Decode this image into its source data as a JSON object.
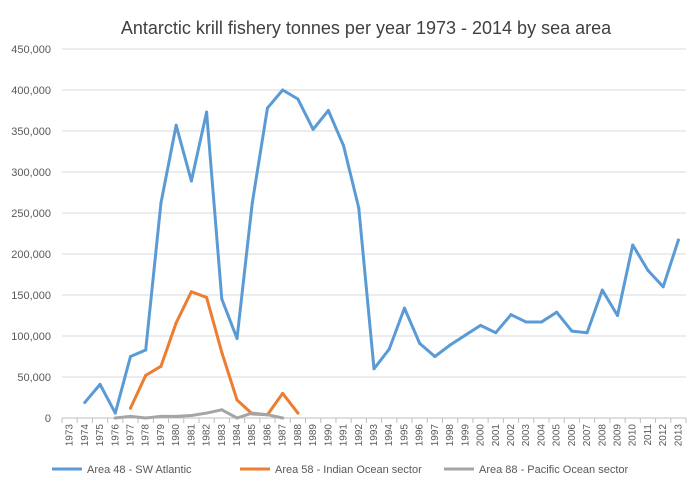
{
  "chart_data": {
    "type": "line",
    "title": "Antarctic krill fishery tonnes per year 1973 - 2014 by sea area",
    "xlabel": "",
    "ylabel": "",
    "ylim": [
      0,
      450000
    ],
    "yticks": [
      0,
      50000,
      100000,
      150000,
      200000,
      250000,
      300000,
      350000,
      400000,
      450000
    ],
    "ytick_labels": [
      "0",
      "50,000",
      "100,000",
      "150,000",
      "200,000",
      "250,000",
      "300,000",
      "350,000",
      "400,000",
      "450,000"
    ],
    "grid": true,
    "legend_position": "bottom",
    "categories": [
      "1973",
      "1974",
      "1975",
      "1976",
      "1977",
      "1978",
      "1979",
      "1980",
      "1981",
      "1982",
      "1983",
      "1984",
      "1985",
      "1986",
      "1987",
      "1988",
      "1989",
      "1990",
      "1991",
      "1992",
      "1993",
      "1994",
      "1995",
      "1996",
      "1997",
      "1998",
      "1999",
      "2000",
      "2001",
      "2002",
      "2003",
      "2004",
      "2005",
      "2006",
      "2007",
      "2008",
      "2009",
      "2010",
      "2011",
      "2012",
      "2013"
    ],
    "series": [
      {
        "name": "Area 48 - SW Atlantic",
        "color": "#5b9bd5",
        "values": [
          null,
          19000,
          41000,
          6000,
          75000,
          83000,
          262000,
          357000,
          289000,
          373000,
          145000,
          97000,
          262000,
          378000,
          400000,
          389000,
          352000,
          375000,
          332000,
          256000,
          60000,
          84000,
          134000,
          91000,
          75000,
          89000,
          101000,
          113000,
          104000,
          126000,
          117000,
          117000,
          129000,
          106000,
          104000,
          156000,
          125000,
          211000,
          180000,
          160000,
          217000
        ]
      },
      {
        "name": "Area 58 - Indian Ocean sector",
        "color": "#ed7d31",
        "values": [
          null,
          null,
          null,
          null,
          12000,
          52000,
          63000,
          116000,
          154000,
          147000,
          80000,
          22000,
          5000,
          4000,
          30000,
          6000,
          null,
          null,
          null,
          null,
          null,
          null,
          null,
          null,
          null,
          null,
          null,
          null,
          null,
          null,
          null,
          null,
          null,
          null,
          null,
          null,
          null,
          null,
          null,
          null,
          null
        ]
      },
      {
        "name": "Area 88 - Pacific Ocean sector",
        "color": "#a5a5a5",
        "values": [
          null,
          null,
          null,
          0,
          2000,
          0,
          2000,
          2000,
          3000,
          6000,
          10000,
          0,
          6000,
          4000,
          0,
          null,
          null,
          null,
          null,
          null,
          null,
          null,
          null,
          null,
          null,
          null,
          null,
          null,
          null,
          null,
          null,
          null,
          null,
          null,
          null,
          null,
          null,
          null,
          null,
          null,
          null
        ]
      }
    ]
  }
}
